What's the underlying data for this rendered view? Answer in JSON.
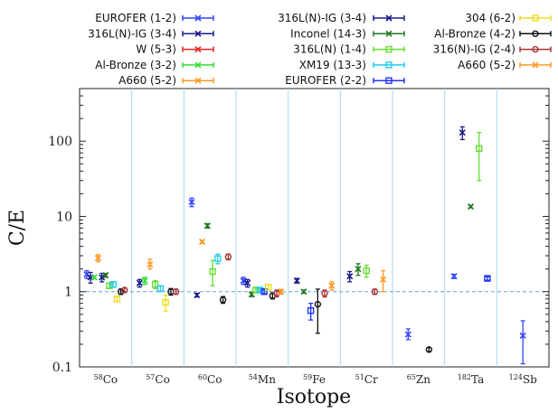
{
  "chart_data": {
    "type": "scatter",
    "xlabel": "Isotope",
    "ylabel": "C/E",
    "yscale": "log",
    "ylim": [
      0.1,
      500
    ],
    "reference_line": 1,
    "yticks": [
      {
        "value": 0.1,
        "label": "0.1"
      },
      {
        "value": 1,
        "label": "1"
      },
      {
        "value": 10,
        "label": "10"
      },
      {
        "value": 100,
        "label": "100"
      }
    ],
    "categories": [
      {
        "mass": "58",
        "element": "Co"
      },
      {
        "mass": "57",
        "element": "Co"
      },
      {
        "mass": "60",
        "element": "Co"
      },
      {
        "mass": "54",
        "element": "Mn"
      },
      {
        "mass": "59",
        "element": "Fe"
      },
      {
        "mass": "51",
        "element": "Cr"
      },
      {
        "mass": "65",
        "element": "Zn"
      },
      {
        "mass": "182",
        "element": "Ta"
      },
      {
        "mass": "124",
        "element": "Sb"
      }
    ],
    "legend": {
      "placement": "top",
      "columns": 3
    },
    "series": [
      {
        "name": "EUROFER (1-2)",
        "color": "#3344ff",
        "marker": "x",
        "points": [
          {
            "cat": 0,
            "y": 1.7,
            "lo": 1.5,
            "hi": 1.9
          },
          {
            "cat": 2,
            "y": 15.5,
            "lo": 13.5,
            "hi": 17.5
          },
          {
            "cat": 3,
            "y": 1.4,
            "lo": 1.25,
            "hi": 1.55
          },
          {
            "cat": 6,
            "y": 0.27,
            "lo": 0.23,
            "hi": 0.32
          },
          {
            "cat": 7,
            "y": 1.6,
            "lo": 1.5,
            "hi": 1.7
          },
          {
            "cat": 8,
            "y": 0.26,
            "lo": 0.11,
            "hi": 0.41
          }
        ]
      },
      {
        "name": "316L(N)-IG (3-4)",
        "color": "#1a1a8c",
        "marker": "x",
        "points": [
          {
            "cat": 0,
            "y": 1.55,
            "lo": 1.3,
            "hi": 1.8
          },
          {
            "cat": 1,
            "y": 1.3,
            "lo": 1.15,
            "hi": 1.45
          },
          {
            "cat": 2,
            "y": 0.9,
            "lo": 0.85,
            "hi": 0.95
          },
          {
            "cat": 3,
            "y": 1.3,
            "lo": 1.15,
            "hi": 1.45
          },
          {
            "cat": 4,
            "y": 1.4,
            "lo": 1.3,
            "hi": 1.5
          },
          {
            "cat": 5,
            "y": 1.6,
            "lo": 1.35,
            "hi": 1.85
          }
        ]
      },
      {
        "name": "W (5-3)",
        "color": "#ee2222",
        "marker": "x",
        "points": []
      },
      {
        "name": "Al-Bronze (3-2)",
        "color": "#33dd33",
        "marker": "x",
        "points": [
          {
            "cat": 0,
            "y": 1.55,
            "lo": 1.5,
            "hi": 1.6
          },
          {
            "cat": 1,
            "y": 1.4,
            "lo": 1.25,
            "hi": 1.55
          }
        ]
      },
      {
        "name": "A660 (5-2)",
        "color": "#ff9922",
        "marker": "x",
        "points": [
          {
            "cat": 0,
            "y": 2.8,
            "lo": 2.5,
            "hi": 3.1
          },
          {
            "cat": 1,
            "y": 2.3,
            "lo": 2.0,
            "hi": 2.7
          },
          {
            "cat": 2,
            "y": 4.6,
            "lo": 4.4,
            "hi": 4.8
          }
        ]
      },
      {
        "name": "316L(N)-IG (3-4)",
        "color": "#1a1a8c",
        "marker": "x",
        "points": [
          {
            "cat": 0,
            "y": 1.55,
            "lo": 1.35,
            "hi": 1.75
          },
          {
            "cat": 7,
            "y": 130,
            "lo": 105,
            "hi": 155
          }
        ]
      },
      {
        "name": "Inconel (14-3)",
        "color": "#227722",
        "marker": "x",
        "points": [
          {
            "cat": 0,
            "y": 1.65,
            "lo": 1.55,
            "hi": 1.75
          },
          {
            "cat": 2,
            "y": 7.5,
            "lo": 7.0,
            "hi": 8.0
          },
          {
            "cat": 3,
            "y": 0.92,
            "lo": 0.86,
            "hi": 0.98
          },
          {
            "cat": 4,
            "y": 1.0,
            "lo": 0.95,
            "hi": 1.05
          },
          {
            "cat": 5,
            "y": 2.0,
            "lo": 1.65,
            "hi": 2.35
          },
          {
            "cat": 7,
            "y": 13.5,
            "lo": 13.0,
            "hi": 14.0
          }
        ]
      },
      {
        "name": "316L(N) (1-4)",
        "color": "#66dd33",
        "marker": "square",
        "points": [
          {
            "cat": 0,
            "y": 1.2,
            "lo": 1.1,
            "hi": 1.3
          },
          {
            "cat": 1,
            "y": 1.25,
            "lo": 1.1,
            "hi": 1.4
          },
          {
            "cat": 2,
            "y": 1.85,
            "lo": 1.2,
            "hi": 2.6
          },
          {
            "cat": 3,
            "y": 1.05,
            "lo": 0.98,
            "hi": 1.12
          },
          {
            "cat": 5,
            "y": 1.9,
            "lo": 1.55,
            "hi": 2.25
          },
          {
            "cat": 7,
            "y": 80,
            "lo": 30,
            "hi": 130
          }
        ]
      },
      {
        "name": "XM19 (13-3)",
        "color": "#22ccee",
        "marker": "square",
        "points": [
          {
            "cat": 0,
            "y": 1.25,
            "lo": 1.15,
            "hi": 1.35
          },
          {
            "cat": 1,
            "y": 1.1,
            "lo": 1.0,
            "hi": 1.2
          },
          {
            "cat": 2,
            "y": 2.75,
            "lo": 2.35,
            "hi": 3.15
          },
          {
            "cat": 3,
            "y": 1.05,
            "lo": 0.98,
            "hi": 1.12
          }
        ]
      },
      {
        "name": "EUROFER (2-2)",
        "color": "#2233ff",
        "marker": "square",
        "points": [
          {
            "cat": 3,
            "y": 1.0,
            "lo": 0.94,
            "hi": 1.06
          },
          {
            "cat": 4,
            "y": 0.56,
            "lo": 0.42,
            "hi": 0.7
          },
          {
            "cat": 7,
            "y": 1.5,
            "lo": 1.42,
            "hi": 1.58
          }
        ]
      },
      {
        "name": "304 (6-2)",
        "color": "#eedd22",
        "marker": "square",
        "points": [
          {
            "cat": 0,
            "y": 0.8,
            "lo": 0.74,
            "hi": 0.86
          },
          {
            "cat": 1,
            "y": 0.72,
            "lo": 0.55,
            "hi": 0.9
          },
          {
            "cat": 3,
            "y": 1.15,
            "lo": 1.05,
            "hi": 1.25
          }
        ]
      },
      {
        "name": "Al-Bronze (4-2)",
        "color": "#111111",
        "marker": "circle",
        "points": [
          {
            "cat": 0,
            "y": 1.0,
            "lo": 0.92,
            "hi": 1.08
          },
          {
            "cat": 1,
            "y": 1.0,
            "lo": 0.9,
            "hi": 1.1
          },
          {
            "cat": 2,
            "y": 0.78,
            "lo": 0.7,
            "hi": 0.86
          },
          {
            "cat": 3,
            "y": 0.88,
            "lo": 0.8,
            "hi": 0.96
          },
          {
            "cat": 4,
            "y": 0.68,
            "lo": 0.28,
            "hi": 1.08
          },
          {
            "cat": 6,
            "y": 0.17,
            "lo": 0.16,
            "hi": 0.18
          }
        ]
      },
      {
        "name": "316(N)-IG (2-4)",
        "color": "#aa3333",
        "marker": "circle",
        "points": [
          {
            "cat": 0,
            "y": 1.05,
            "lo": 0.98,
            "hi": 1.12
          },
          {
            "cat": 1,
            "y": 1.0,
            "lo": 0.92,
            "hi": 1.08
          },
          {
            "cat": 2,
            "y": 2.9,
            "lo": 2.65,
            "hi": 3.15
          },
          {
            "cat": 3,
            "y": 0.95,
            "lo": 0.85,
            "hi": 1.05
          },
          {
            "cat": 4,
            "y": 0.95,
            "lo": 0.85,
            "hi": 1.05
          },
          {
            "cat": 5,
            "y": 1.0,
            "lo": 0.92,
            "hi": 1.08
          }
        ]
      },
      {
        "name": "A660 (5-2)",
        "color": "#ff9922",
        "marker": "x",
        "points": [
          {
            "cat": 3,
            "y": 1.0,
            "lo": 0.93,
            "hi": 1.07
          },
          {
            "cat": 4,
            "y": 1.2,
            "lo": 1.05,
            "hi": 1.35
          },
          {
            "cat": 5,
            "y": 1.45,
            "lo": 1.0,
            "hi": 1.9
          }
        ]
      }
    ]
  }
}
